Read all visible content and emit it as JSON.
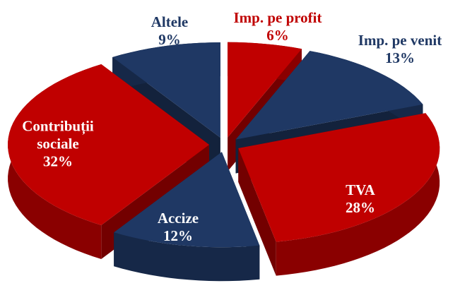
{
  "chart_data": {
    "type": "pie",
    "categories": [
      "Imp. pe profit",
      "Imp. pe venit",
      "TVA",
      "Accize",
      "Contribuții sociale",
      "Altele"
    ],
    "values": [
      6,
      13,
      28,
      12,
      32,
      9
    ],
    "value_labels": [
      "6%",
      "13%",
      "28%",
      "12%",
      "32%",
      "9%"
    ],
    "colors": [
      "#c00000",
      "#1f3864",
      "#c00000",
      "#1f3864",
      "#c00000",
      "#1f3864"
    ],
    "explode": true
  }
}
